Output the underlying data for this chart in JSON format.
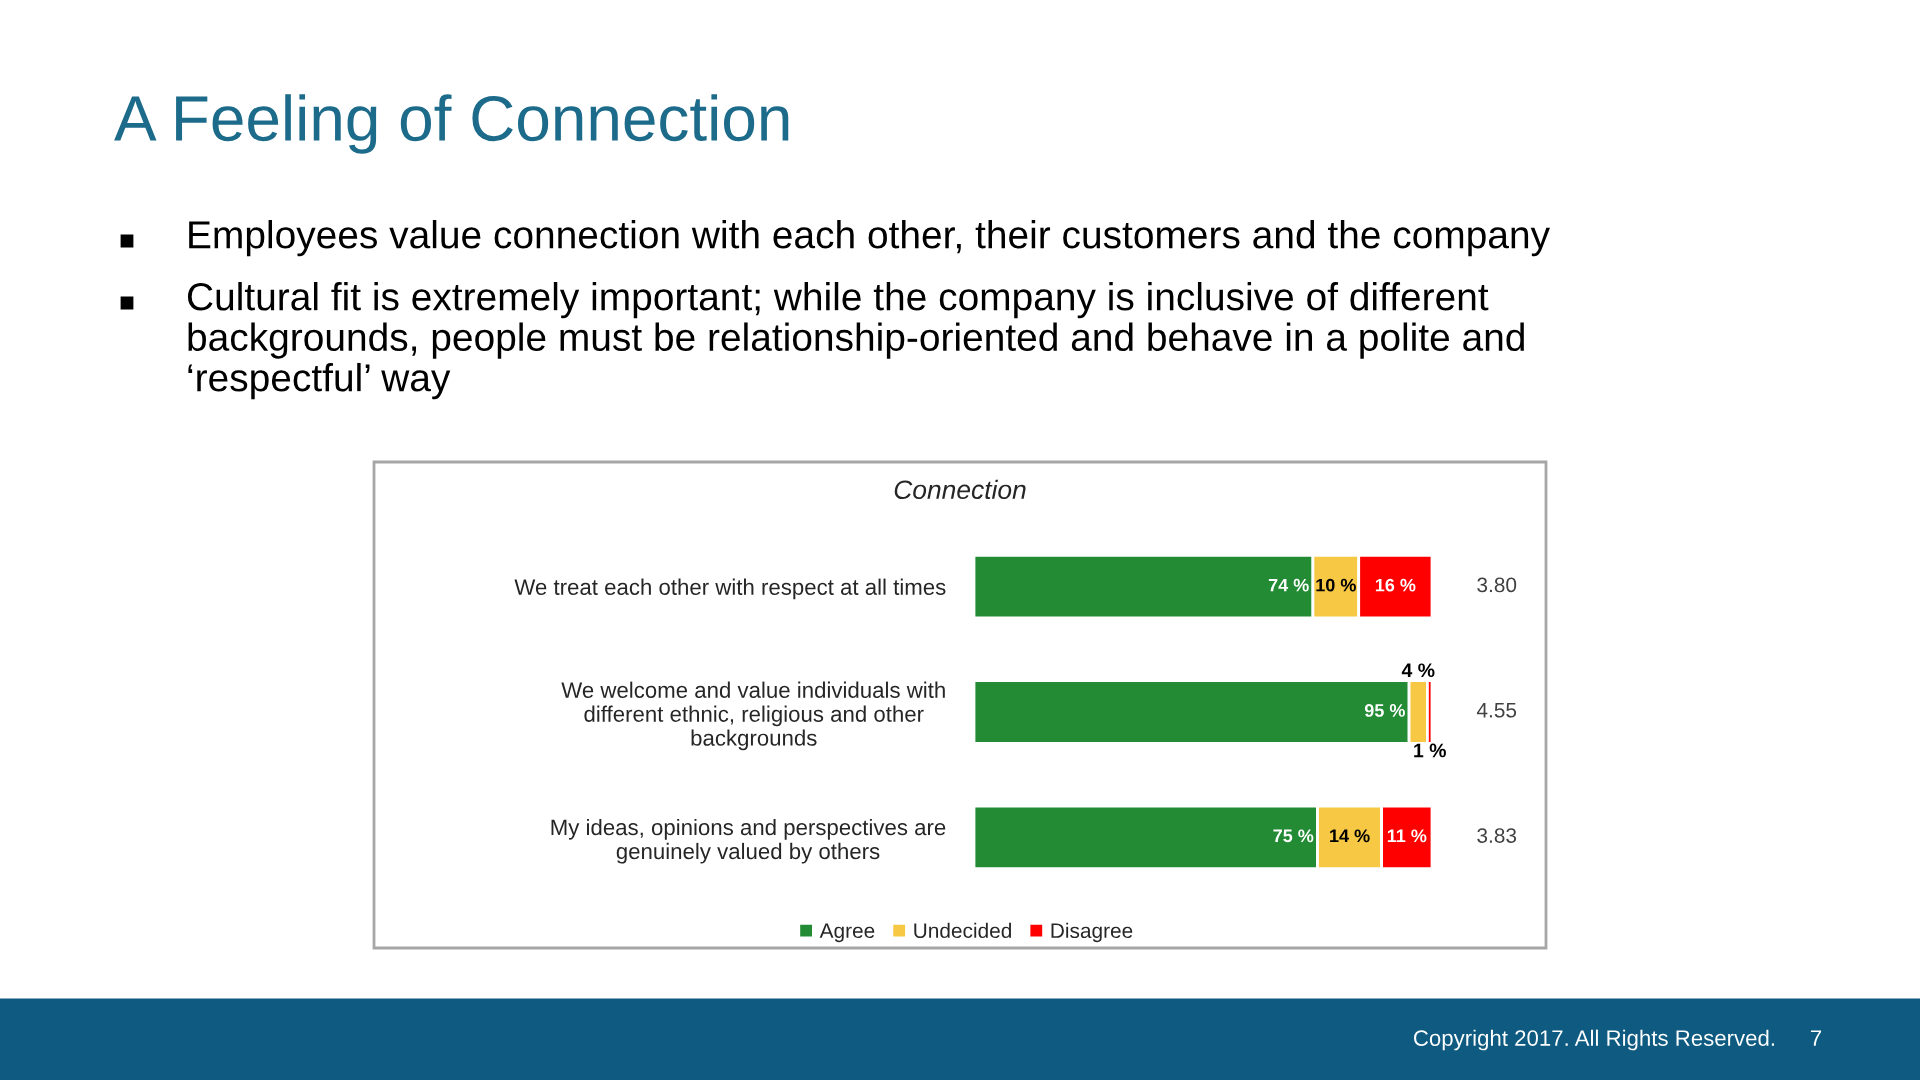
{
  "chart_data": {
    "type": "bar",
    "orientation": "horizontal",
    "stacked": true,
    "title": "A Feeling of Connection",
    "subtitle": "Connection",
    "categories": [
      "We treat each other with respect at all times",
      "We welcome and value individuals with\ndifferent ethnic, religious and other\nbackgrounds",
      "My ideas, opinions and perspectives are\ngenuinely valued by others"
    ],
    "series": [
      {
        "name": "Agree",
        "color": "#228b34",
        "values": [
          74,
          95,
          75
        ],
        "value_labels": [
          "74 %",
          "95 %",
          "75 %"
        ]
      },
      {
        "name": "Undecided",
        "color": "#f7c843",
        "values": [
          10,
          4,
          14
        ],
        "value_labels": [
          "10 %",
          "4 %",
          "14 %"
        ]
      },
      {
        "name": "Disagree",
        "color": "#ff0000",
        "values": [
          16,
          1,
          11
        ],
        "value_labels": [
          "16 %",
          "1 %",
          "11 %"
        ]
      }
    ],
    "annotations": [
      "Employees value connection with each other, their customers and the company",
      "Cultural fit is extremely important; while the company is inclusive of different\nbackgrounds, people must be relationship-oriented and behave in a polite and\n‘respectful’ way",
      "3.80",
      "4.55",
      "3.83",
      "Copyright 2017. All Rights Reserved.",
      "7"
    ],
    "legend": "bottom"
  }
}
